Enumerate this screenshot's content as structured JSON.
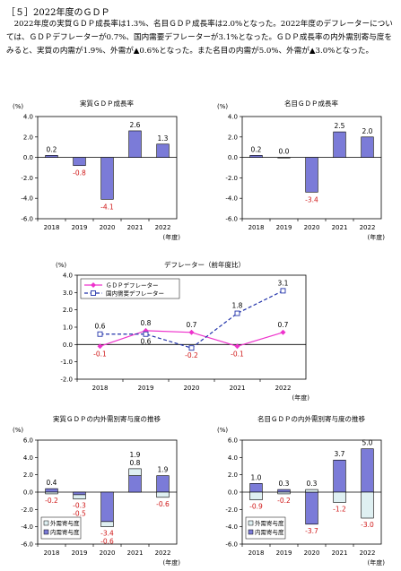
{
  "document": {
    "section_title": "［５］2022年度のＧＤＰ",
    "paragraph": "2022年度の実質ＧＤＰ成長率は1.3%、名目ＧＤＰ成長率は2.0%となった。2022年度のデフレーターについては、ＧＤＰデフレーターが0.7%、国内需要デフレーターが3.1%となった。ＧＤＰ成長率の内外需別寄与度をみると、実質の内需が1.9%、外需が▲0.6%となった。また名目の内需が5.0%、外需が▲3.0%となった。"
  },
  "colors": {
    "bar": "#7b7bd8",
    "line_pink": "#ee33cc",
    "line_blue": "#2233aa",
    "neg_label": "#d01818",
    "ext_bar": "#dff0f2"
  },
  "chart_data": [
    {
      "id": "real-gdp",
      "type": "bar",
      "title": "実質ＧＤＰ成長率",
      "unit": "(%)",
      "year_label": "(年度)",
      "categories": [
        "2018",
        "2019",
        "2020",
        "2021",
        "2022"
      ],
      "values": [
        0.2,
        -0.8,
        -4.1,
        2.6,
        1.3
      ],
      "value_labels": [
        "0.2",
        "-0.8",
        "-4.1",
        "2.6",
        "1.3"
      ],
      "ylim": [
        -6.0,
        4.0
      ],
      "yticks": [
        "4.0",
        "2.0",
        "0.0",
        "-2.0",
        "-4.0",
        "-6.0"
      ],
      "grid": false
    },
    {
      "id": "nominal-gdp",
      "type": "bar",
      "title": "名目ＧＤＰ成長率",
      "unit": "(%)",
      "year_label": "(年度)",
      "categories": [
        "2018",
        "2019",
        "2020",
        "2021",
        "2022"
      ],
      "values": [
        0.2,
        0.0,
        -3.4,
        2.5,
        2.0
      ],
      "value_labels": [
        "0.2",
        "0.0",
        "-3.4",
        "2.5",
        "2.0"
      ],
      "ylim": [
        -6.0,
        4.0
      ],
      "yticks": [
        "4.0",
        "2.0",
        "0.0",
        "-2.0",
        "-4.0",
        "-6.0"
      ],
      "grid": false
    },
    {
      "id": "deflator",
      "type": "line",
      "title": "デフレーター（前年度比）",
      "unit": "(%)",
      "year_label": "(年度)",
      "categories": [
        "2018",
        "2019",
        "2020",
        "2021",
        "2022"
      ],
      "ylim": [
        -2.0,
        4.0
      ],
      "yticks": [
        "4.0",
        "3.0",
        "2.0",
        "1.0",
        "0.0",
        "-1.0",
        "-2.0"
      ],
      "legend_position": "top-left",
      "series": [
        {
          "name": "ＧＤＰデフレーター",
          "values": [
            -0.1,
            0.8,
            0.7,
            -0.1,
            0.7
          ],
          "value_labels": [
            "-0.1",
            "0.8",
            "0.7",
            "-0.1",
            "0.7"
          ]
        },
        {
          "name": "国内需要デフレーター",
          "values": [
            0.6,
            0.6,
            -0.2,
            1.8,
            3.1
          ],
          "value_labels": [
            "0.6",
            "0.6",
            "-0.2",
            "1.8",
            "3.1"
          ]
        }
      ]
    },
    {
      "id": "real-contrib",
      "type": "bar",
      "stacked": true,
      "title": "実質ＧＤＰの内外需別寄与度の推移",
      "unit": "(%)",
      "year_label": "(年度)",
      "categories": [
        "2018",
        "2019",
        "2020",
        "2021",
        "2022"
      ],
      "ylim": [
        -6.0,
        6.0
      ],
      "yticks": [
        "6.0",
        "4.0",
        "2.0",
        "0.0",
        "-2.0",
        "-4.0",
        "-6.0"
      ],
      "legend_position": "bottom-left",
      "series": [
        {
          "name": "外需寄与度",
          "values": [
            -0.2,
            -0.5,
            -0.6,
            0.8,
            -0.6
          ],
          "value_labels": [
            "-0.2",
            "-0.5",
            "-0.6",
            "0.8",
            "-0.6"
          ]
        },
        {
          "name": "内需寄与度",
          "values": [
            0.4,
            -0.3,
            -3.4,
            1.9,
            1.9
          ],
          "value_labels": [
            "0.4",
            "-0.3",
            "-3.4",
            "1.9",
            "1.9"
          ]
        }
      ]
    },
    {
      "id": "nominal-contrib",
      "type": "bar",
      "stacked": true,
      "title": "名目ＧＤＰの内外需別寄与度の推移",
      "unit": "(%)",
      "year_label": "(年度)",
      "categories": [
        "2018",
        "2019",
        "2020",
        "2021",
        "2022"
      ],
      "ylim": [
        -6.0,
        6.0
      ],
      "yticks": [
        "6.0",
        "4.0",
        "2.0",
        "0.0",
        "-2.0",
        "-4.0",
        "-6.0"
      ],
      "legend_position": "bottom-left",
      "series": [
        {
          "name": "外需寄与度",
          "values": [
            -0.9,
            -0.2,
            0.3,
            -1.2,
            -3.0
          ],
          "value_labels": [
            "-0.9",
            "-0.2",
            "0.3",
            "-1.2",
            "-3.0"
          ]
        },
        {
          "name": "内需寄与度",
          "values": [
            1.0,
            0.3,
            -3.7,
            3.7,
            5.0
          ],
          "value_labels": [
            "1.0",
            "0.3",
            "-3.7",
            "3.7",
            "5.0"
          ]
        }
      ]
    }
  ]
}
